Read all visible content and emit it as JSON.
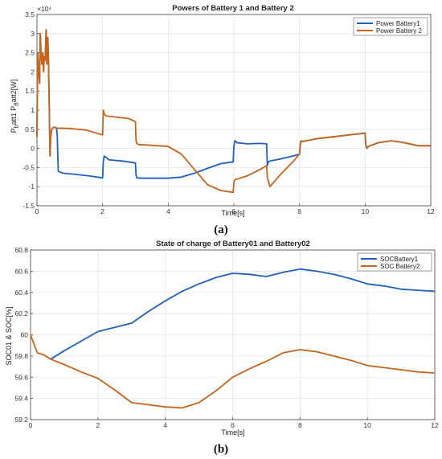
{
  "chart_data": [
    {
      "type": "line",
      "panel_label": "(a)",
      "title": "Powers of Battery 1 and Battery 2",
      "xlabel": "Time[s]",
      "ylabel": "P_batt1 P_Batt2[W]",
      "ylabel_parts": {
        "p1": "P",
        "s1": "b",
        "m": "att1 P",
        "s2": "B",
        "e": "att2[W]"
      },
      "y_exponent": "×10⁴",
      "xlim": [
        0,
        12
      ],
      "ylim": [
        -1.5,
        3.5
      ],
      "xticks": [
        0,
        2,
        4,
        6,
        8,
        10,
        12
      ],
      "yticks": [
        -1.5,
        -1,
        -0.5,
        0,
        0.5,
        1,
        1.5,
        2,
        2.5,
        3,
        3.5
      ],
      "ytick_labels": [
        "-1.5",
        "-1",
        "-0.5",
        "0",
        "0.5",
        "1",
        "1.5",
        "2",
        "2.5",
        "3",
        "3.5"
      ],
      "grid": true,
      "legend_position": "top-right",
      "series": [
        {
          "name": "Power Battery1",
          "color": "#1f5fbf",
          "x": [
            0,
            0.02,
            0.05,
            0.08,
            0.1,
            0.12,
            0.15,
            0.18,
            0.2,
            0.22,
            0.25,
            0.28,
            0.3,
            0.33,
            0.35,
            0.38,
            0.4,
            0.42,
            0.45,
            0.5,
            0.55,
            0.6,
            0.62,
            0.65,
            0.8,
            1.2,
            1.6,
            2.0,
            2.02,
            2.05,
            2.2,
            2.6,
            3.0,
            3.02,
            3.05,
            3.2,
            3.6,
            4.0,
            4.4,
            4.8,
            5.2,
            5.6,
            5.98,
            6.0,
            6.03,
            6.1,
            6.4,
            6.8,
            7.0,
            7.02,
            7.05,
            7.1,
            7.4,
            7.8,
            8.0,
            8.03,
            8.05,
            8.1,
            8.5,
            9.0,
            9.5,
            10.0,
            10.02,
            10.05,
            10.1,
            10.4,
            10.8,
            11.2,
            11.6,
            12.0
          ],
          "y": [
            0.3,
            2.5,
            2.0,
            1.7,
            3.0,
            2.6,
            2.2,
            2.5,
            2.0,
            2.4,
            2.3,
            3.1,
            2.2,
            2.9,
            2.3,
            0.8,
            -0.2,
            0.3,
            0.5,
            0.55,
            0.55,
            0.52,
            0.3,
            -0.6,
            -0.65,
            -0.68,
            -0.72,
            -0.77,
            -0.35,
            -0.2,
            -0.3,
            -0.33,
            -0.38,
            -0.7,
            -0.77,
            -0.78,
            -0.78,
            -0.78,
            -0.75,
            -0.65,
            -0.52,
            -0.4,
            -0.35,
            0.05,
            0.2,
            0.15,
            0.12,
            0.13,
            0.12,
            -0.45,
            -0.35,
            -0.33,
            -0.28,
            -0.2,
            -0.15,
            0.15,
            0.2,
            0.18,
            0.25,
            0.3,
            0.35,
            0.4,
            0.1,
            0.0,
            0.05,
            0.15,
            0.2,
            0.15,
            0.07,
            0.07
          ]
        },
        {
          "name": "Power Battery 2",
          "color": "#c8641a",
          "x": [
            0,
            0.02,
            0.05,
            0.08,
            0.1,
            0.12,
            0.15,
            0.18,
            0.2,
            0.22,
            0.25,
            0.28,
            0.3,
            0.33,
            0.35,
            0.38,
            0.4,
            0.42,
            0.45,
            0.5,
            0.55,
            0.6,
            1.0,
            1.5,
            2.0,
            2.02,
            2.05,
            2.1,
            2.4,
            2.8,
            3.0,
            3.02,
            3.05,
            3.1,
            3.5,
            4.0,
            4.4,
            4.8,
            5.2,
            5.6,
            5.98,
            6.0,
            6.03,
            6.1,
            6.4,
            6.8,
            7.0,
            7.02,
            7.1,
            7.4,
            7.8,
            8.0,
            8.03,
            8.05,
            8.1,
            8.5,
            9.0,
            9.5,
            10.0,
            10.02,
            10.05,
            10.1,
            10.4,
            10.8,
            11.2,
            11.6,
            12.0
          ],
          "y": [
            0.3,
            2.5,
            2.0,
            1.7,
            3.0,
            2.6,
            2.2,
            2.5,
            2.0,
            2.4,
            2.3,
            3.1,
            2.2,
            2.9,
            2.3,
            0.8,
            -0.2,
            0.3,
            0.5,
            0.55,
            0.55,
            0.53,
            0.52,
            0.48,
            0.35,
            1.0,
            0.9,
            0.85,
            0.82,
            0.78,
            0.7,
            0.2,
            0.12,
            0.1,
            0.08,
            0.05,
            -0.15,
            -0.55,
            -0.95,
            -1.1,
            -1.15,
            -0.9,
            -0.82,
            -0.8,
            -0.72,
            -0.55,
            -0.45,
            -0.75,
            -1.0,
            -0.7,
            -0.35,
            -0.15,
            0.15,
            0.2,
            0.18,
            0.25,
            0.3,
            0.35,
            0.4,
            0.1,
            0.0,
            0.05,
            0.15,
            0.2,
            0.15,
            0.07,
            0.07
          ]
        }
      ]
    },
    {
      "type": "line",
      "panel_label": "(b)",
      "title": "State of charge of Battery01 and Battery02",
      "xlabel": "Time[s]",
      "ylabel": "SOC01 & SOC[%]",
      "xlim": [
        0,
        12
      ],
      "ylim": [
        59.2,
        60.8
      ],
      "xticks": [
        0,
        2,
        4,
        6,
        8,
        10,
        12
      ],
      "yticks": [
        59.2,
        59.4,
        59.6,
        59.8,
        60,
        60.2,
        60.4,
        60.6,
        60.8
      ],
      "ytick_labels": [
        "59.2",
        "59.4",
        "59.6",
        "59.8",
        "60",
        "60.2",
        "60.4",
        "60.6",
        "60.8"
      ],
      "grid": true,
      "legend_position": "top-right",
      "series": [
        {
          "name": "SOCBattery1",
          "color": "#1f5fbf",
          "x": [
            0.6,
            1.0,
            1.5,
            2.0,
            2.5,
            3.0,
            3.5,
            4.0,
            4.5,
            5.0,
            5.5,
            6.0,
            6.5,
            7.0,
            7.5,
            8.0,
            8.5,
            9.0,
            9.5,
            10.0,
            10.5,
            11.0,
            11.5,
            12.0
          ],
          "y": [
            59.77,
            59.85,
            59.94,
            60.03,
            60.07,
            60.11,
            60.22,
            60.32,
            60.41,
            60.48,
            60.54,
            60.58,
            60.57,
            60.55,
            60.59,
            60.62,
            60.6,
            60.57,
            60.53,
            60.48,
            60.46,
            60.43,
            60.42,
            60.41
          ]
        },
        {
          "name": "SOC Battery2",
          "color": "#c8641a",
          "x": [
            0,
            0.2,
            0.4,
            0.6,
            1.0,
            1.5,
            2.0,
            2.5,
            3.0,
            3.5,
            4.0,
            4.5,
            5.0,
            5.5,
            6.0,
            6.5,
            7.0,
            7.5,
            8.0,
            8.5,
            9.0,
            9.5,
            10.0,
            10.5,
            11.0,
            11.5,
            12.0
          ],
          "y": [
            60.0,
            59.83,
            59.81,
            59.77,
            59.72,
            59.65,
            59.59,
            59.48,
            59.36,
            59.34,
            59.32,
            59.31,
            59.36,
            59.47,
            59.6,
            59.68,
            59.75,
            59.83,
            59.86,
            59.84,
            59.8,
            59.76,
            59.71,
            59.69,
            59.67,
            59.65,
            59.64
          ]
        }
      ]
    }
  ]
}
